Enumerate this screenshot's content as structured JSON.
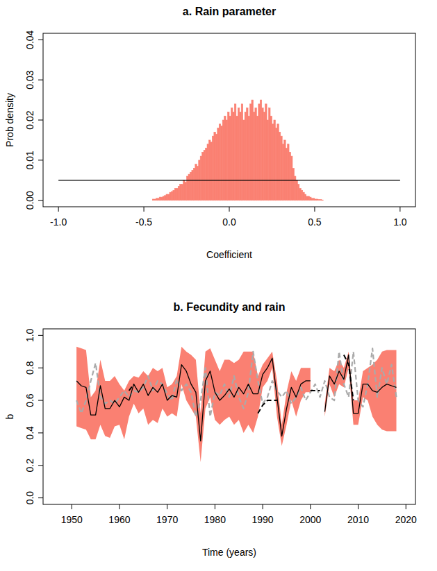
{
  "chart_data": [
    {
      "type": "histogram",
      "title": "a. Rain parameter",
      "x_label": "Coefficient",
      "y_label": "Prob density",
      "color": "#FA8072",
      "bins": [
        -1,
        -0.5,
        -0.49,
        -0.48,
        -0.47,
        -0.46,
        -0.45,
        -0.44,
        -0.43,
        -0.42,
        -0.41,
        -0.4,
        -0.39,
        -0.38,
        -0.37,
        -0.36,
        -0.35,
        -0.34,
        -0.33,
        -0.32,
        -0.31,
        -0.3,
        -0.29,
        -0.28,
        -0.27,
        -0.26,
        -0.25,
        -0.24,
        -0.23,
        -0.22,
        -0.21,
        -0.2,
        -0.19,
        -0.18,
        -0.17,
        -0.16,
        -0.15,
        -0.14,
        -0.13,
        -0.12,
        -0.11,
        -0.1,
        -0.09,
        -0.08,
        -0.07,
        -0.06,
        -0.05,
        -0.04,
        -0.03,
        -0.02,
        -0.01,
        0,
        0.01,
        0.02,
        0.03,
        0.04,
        0.05,
        0.06,
        0.07,
        0.08,
        0.09,
        0.1,
        0.11,
        0.12,
        0.13,
        0.14,
        0.15,
        0.16,
        0.17,
        0.18,
        0.19,
        0.2,
        0.21,
        0.22,
        0.23,
        0.24,
        0.25,
        0.26,
        0.27,
        0.28,
        0.29,
        0.3,
        0.31,
        0.32,
        0.33,
        0.34,
        0.35,
        0.36,
        0.37,
        0.38,
        0.39,
        0.4,
        0.41,
        0.42,
        0.43,
        0.44,
        0.45,
        0.46,
        0.47,
        0.48,
        0.49,
        0.5,
        0.51,
        0.52,
        0.53,
        0.54,
        0.55,
        0.56,
        0.57,
        0.58,
        0.59,
        0.6,
        1
      ],
      "values": [
        0,
        0,
        0,
        0,
        0,
        0,
        0.0003,
        0.0003,
        0.0005,
        0.0005,
        0.0008,
        0.0008,
        0.001,
        0.0012,
        0.0015,
        0.0015,
        0.002,
        0.0022,
        0.0025,
        0.003,
        0.003,
        0.0035,
        0.004,
        0.004,
        0.005,
        0.0045,
        0.006,
        0.0065,
        0.007,
        0.0075,
        0.008,
        0.009,
        0.0085,
        0.01,
        0.011,
        0.012,
        0.0125,
        0.013,
        0.014,
        0.015,
        0.0145,
        0.016,
        0.017,
        0.0165,
        0.018,
        0.019,
        0.0185,
        0.02,
        0.021,
        0.02,
        0.022,
        0.021,
        0.023,
        0.022,
        0.024,
        0.021,
        0.023,
        0.022,
        0.024,
        0.02,
        0.022,
        0.023,
        0.021,
        0.024,
        0.025,
        0.022,
        0.023,
        0.021,
        0.024,
        0.025,
        0.023,
        0.022,
        0.024,
        0.02,
        0.023,
        0.021,
        0.019,
        0.02,
        0.018,
        0.019,
        0.017,
        0.016,
        0.014,
        0.015,
        0.013,
        0.014,
        0.012,
        0.011,
        0.008,
        0.006,
        0.005,
        0.004,
        0.003,
        0.0025,
        0.002,
        0.0015,
        0.001,
        0.001,
        0.0008,
        0.0005,
        0.0005,
        0.0003,
        0.0003,
        0.0002,
        0.0002,
        0.0001,
        0,
        0,
        0,
        0,
        0,
        0
      ],
      "series": [
        {
          "type": "line",
          "color": "#000000",
          "line_style": "solid",
          "x": [
            -1,
            1
          ],
          "values": [
            0.005,
            0.005
          ]
        }
      ],
      "xlim": [
        -1.09,
        1.09
      ],
      "ylim": [
        -0.0016,
        0.0416
      ],
      "xticks": [
        {
          "value": -1,
          "label": "-1.0"
        },
        -0.5,
        {
          "value": 0,
          "label": "0.0"
        },
        0.5,
        {
          "value": 1,
          "label": "1.0"
        }
      ],
      "yticks": [
        {
          "value": 0,
          "label": "0.00"
        },
        {
          "value": 0.01,
          "label": "0.01"
        },
        {
          "value": 0.02,
          "label": "0.02"
        },
        {
          "value": 0.03,
          "label": "0.03"
        },
        {
          "value": 0.04,
          "label": "0.04"
        }
      ]
    },
    {
      "type": "line",
      "title": "b. Fecundity and rain",
      "x_label": "Time (years)",
      "y_label": "b",
      "x": [
        1951,
        1952,
        1953,
        1954,
        1955,
        1956,
        1957,
        1958,
        1959,
        1960,
        1961,
        1962,
        1963,
        1964,
        1965,
        1966,
        1967,
        1968,
        1969,
        1970,
        1971,
        1972,
        1973,
        1974,
        1975,
        1976,
        1977,
        1978,
        1979,
        1980,
        1981,
        1982,
        1983,
        1984,
        1985,
        1986,
        1987,
        1988,
        1989,
        1990,
        1991,
        1992,
        1993,
        1994,
        1995,
        1996,
        1997,
        1998,
        1999,
        2000,
        2001,
        2002,
        2003,
        2004,
        2005,
        2006,
        2007,
        2008,
        2009,
        2010,
        2011,
        2012,
        2013,
        2014,
        2015,
        2016,
        2017,
        2018
      ],
      "series": [
        {
          "type": "area",
          "color": "#FA8072",
          "lower": [
            0.44,
            0.43,
            0.42,
            0.36,
            0.36,
            0.45,
            0.38,
            0.37,
            0.44,
            0.45,
            0.36,
            0.5,
            0.58,
            0.52,
            0.55,
            0.45,
            0.48,
            0.46,
            0.55,
            0.5,
            0.52,
            0.5,
            0.7,
            0.6,
            0.55,
            0.5,
            0.22,
            0.55,
            0.62,
            0.48,
            0.45,
            0.48,
            0.5,
            0.45,
            0.48,
            0.4,
            0.45,
            0.4,
            0.5,
            0.68,
            0.72,
            0.8,
            0.5,
            0.32,
            0.45,
            0.6,
            0.5,
            0.6,
            0.65,
            0.65,
            null,
            null,
            0.5,
            0.7,
            0.62,
            0.7,
            0.68,
            0.8,
            0.45,
            0.45,
            0.62,
            0.6,
            0.5,
            0.45,
            0.42,
            0.41,
            0.41,
            0.41
          ],
          "upper": [
            0.93,
            0.92,
            0.91,
            0.62,
            0.66,
            0.85,
            0.72,
            0.72,
            0.75,
            0.7,
            0.66,
            0.72,
            0.75,
            0.74,
            0.78,
            0.75,
            0.8,
            0.78,
            0.8,
            0.68,
            0.7,
            0.75,
            0.93,
            0.9,
            0.88,
            0.85,
            0.52,
            0.9,
            0.92,
            0.85,
            0.78,
            0.85,
            0.85,
            0.83,
            0.85,
            0.9,
            0.9,
            0.9,
            0.75,
            0.82,
            0.86,
            0.9,
            0.72,
            0.45,
            0.65,
            0.78,
            0.72,
            0.8,
            0.8,
            0.8,
            null,
            null,
            0.58,
            0.8,
            0.78,
            0.85,
            0.8,
            0.9,
            0.6,
            0.6,
            0.78,
            0.8,
            0.82,
            0.85,
            0.9,
            0.91,
            0.91,
            0.91
          ]
        },
        {
          "type": "line",
          "color": "#AAAAAA",
          "line_style": "dashed",
          "values": [
            0.6,
            0.52,
            0.6,
            0.72,
            0.83,
            0.62,
            0.58,
            0.6,
            0.58,
            0.62,
            0.66,
            0.62,
            0.66,
            0.65,
            0.68,
            0.75,
            0.66,
            0.72,
            0.7,
            0.64,
            0.6,
            0.73,
            0.66,
            0.7,
            0.65,
            0.5,
            0.6,
            0.8,
            0.5,
            0.65,
            0.63,
            0.7,
            0.62,
            0.75,
            0.62,
            0.55,
            0.65,
            0.9,
            0.72,
            0.58,
            0.62,
            0.72,
            0.66,
            0.62,
            0.66,
            0.58,
            0.62,
            0.68,
            0.6,
            0.65,
            0.7,
            0.62,
            0.72,
            0.62,
            0.6,
            0.9,
            0.7,
            0.62,
            0.9,
            0.6,
            0.56,
            0.7,
            0.92,
            0.62,
            0.8,
            0.7,
            0.82,
            0.62
          ]
        },
        {
          "type": "line",
          "color": "#000000",
          "line_style": "solid",
          "values": [
            0.72,
            0.69,
            0.68,
            0.51,
            0.51,
            0.69,
            0.55,
            0.55,
            0.6,
            0.56,
            0.62,
            0.6,
            0.7,
            0.65,
            0.7,
            0.63,
            0.68,
            0.65,
            0.7,
            0.6,
            0.63,
            0.62,
            0.82,
            0.78,
            0.7,
            0.65,
            0.35,
            0.72,
            0.78,
            0.65,
            0.6,
            0.63,
            0.67,
            0.62,
            0.68,
            0.64,
            0.7,
            0.64,
            0.64,
            0.76,
            0.8,
            0.86,
            0.62,
            0.38,
            0.55,
            0.68,
            0.62,
            0.7,
            0.72,
            0.72,
            null,
            null,
            0.53,
            0.75,
            0.7,
            0.78,
            0.73,
            0.88,
            0.52,
            0.52,
            0.7,
            0.7,
            0.66,
            0.65,
            0.68,
            0.7,
            0.69,
            0.68
          ]
        },
        {
          "type": "line",
          "color": "#000000",
          "line_style": "dashed",
          "values": [
            null,
            null,
            null,
            null,
            null,
            null,
            null,
            null,
            null,
            null,
            null,
            0.66,
            0.7,
            null,
            null,
            null,
            null,
            null,
            null,
            null,
            null,
            null,
            null,
            null,
            null,
            null,
            null,
            null,
            null,
            null,
            null,
            null,
            null,
            null,
            null,
            null,
            null,
            null,
            0.52,
            0.57,
            0.6,
            0.6,
            0.6,
            null,
            null,
            null,
            null,
            null,
            null,
            0.66,
            0.66,
            0.66,
            null,
            null,
            null,
            null,
            0.88,
            0.82,
            0.6,
            null,
            null,
            null,
            null,
            null,
            null,
            null,
            null,
            null
          ]
        }
      ],
      "xlim": [
        1944,
        2022
      ],
      "ylim": [
        -0.04,
        1.04
      ],
      "xticks": [
        1950,
        1960,
        1970,
        1980,
        1990,
        2000,
        2010,
        2020
      ],
      "yticks": [
        {
          "value": 0,
          "label": "0.0"
        },
        0.2,
        0.4,
        0.6,
        0.8,
        {
          "value": 1,
          "label": "1.0"
        }
      ]
    }
  ]
}
